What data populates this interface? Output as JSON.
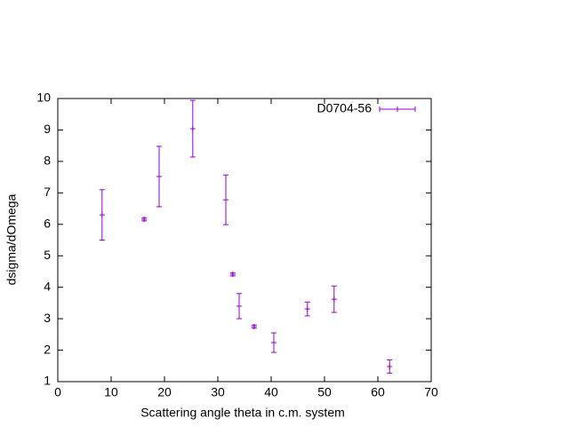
{
  "chart_data": {
    "type": "errorbar",
    "xlabel": "Scattering angle theta in c.m. system",
    "ylabel": "dsigma/dOmega",
    "xlim": [
      0,
      70
    ],
    "xticks": [
      0,
      10,
      20,
      30,
      40,
      50,
      60,
      70
    ],
    "ylim": [
      1,
      10
    ],
    "yticks": [
      1,
      2,
      3,
      4,
      5,
      6,
      7,
      8,
      9,
      10
    ],
    "legend": "top-right",
    "series": [
      {
        "name": "D0704-56",
        "color": "#9400d3",
        "x": [
          8.3,
          16.2,
          19.0,
          25.3,
          31.5,
          32.8,
          34.0,
          36.8,
          40.5,
          46.8,
          51.8,
          62.2
        ],
        "values": [
          6.3,
          6.16,
          7.52,
          9.04,
          6.78,
          4.41,
          3.4,
          2.75,
          2.24,
          3.31,
          3.62,
          1.48
        ],
        "errors": [
          0.8,
          0.05,
          0.96,
          0.9,
          0.79,
          0.05,
          0.4,
          0.05,
          0.31,
          0.22,
          0.42,
          0.21
        ]
      }
    ]
  }
}
